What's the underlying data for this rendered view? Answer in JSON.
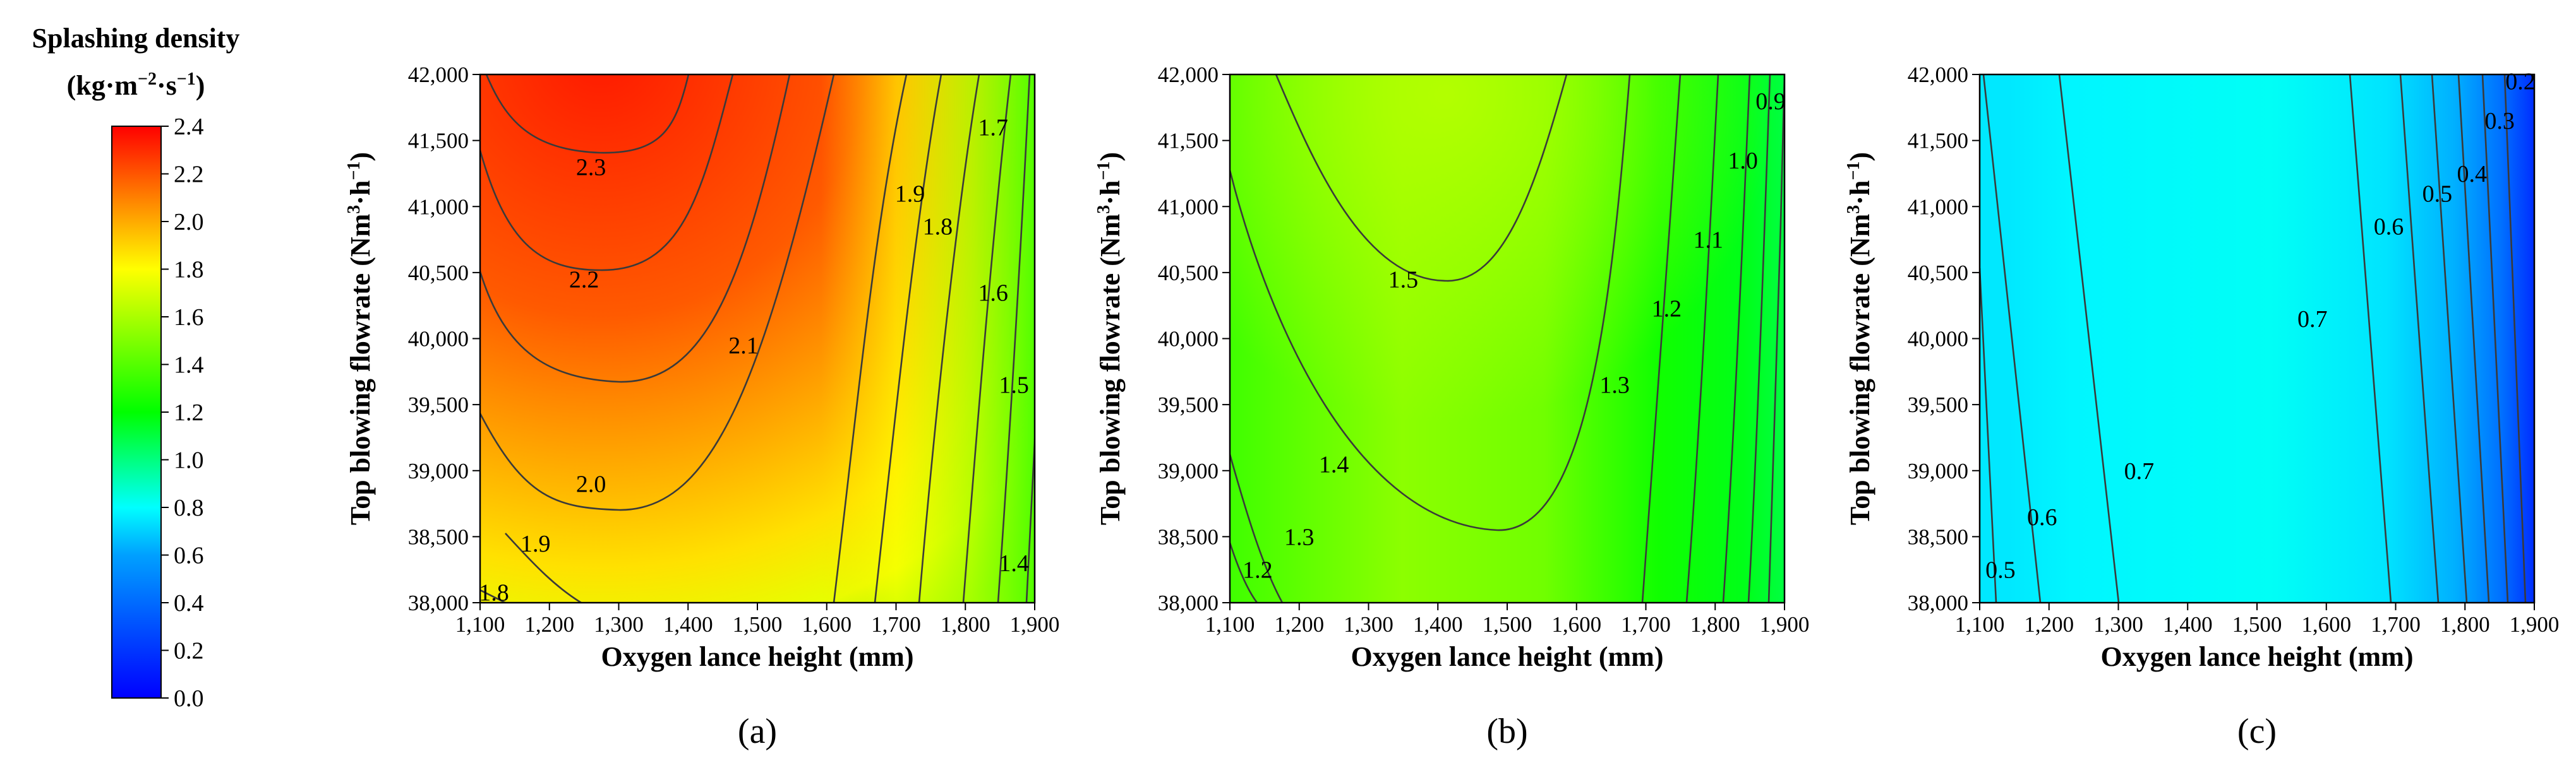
{
  "colorbar": {
    "title_line1": "Splashing density",
    "title_line2_parts": [
      "(kg·m",
      "−2",
      "·s",
      "−1",
      ")"
    ],
    "ticks": [
      "2.4",
      "2.2",
      "2.0",
      "1.8",
      "1.6",
      "1.4",
      "1.2",
      "1.0",
      "0.8",
      "0.6",
      "0.4",
      "0.2",
      "0.0"
    ],
    "range": [
      0,
      2.4
    ],
    "colors": [
      "#0000ff",
      "#00a0ff",
      "#00ffff",
      "#00ff00",
      "#ffff00",
      "#ff8000",
      "#ff0000"
    ]
  },
  "axes": {
    "xlabel": "Oxygen lance height (mm)",
    "ylabel_parts": [
      "Top blowing flowrate (Nm",
      "3",
      "·h",
      "−1",
      ")"
    ],
    "x_ticks": [
      "1,100",
      "1,200",
      "1,300",
      "1,400",
      "1,500",
      "1,600",
      "1,700",
      "1,800",
      "1,900"
    ],
    "y_ticks": [
      "42,000",
      "41,500",
      "41,000",
      "40,500",
      "40,000",
      "39,500",
      "39,000",
      "38,500",
      "38,000"
    ],
    "xlim": [
      1100,
      1900
    ],
    "ylim": [
      38000,
      42000
    ]
  },
  "chart_data": [
    {
      "type": "heatmap",
      "panel_label": "(a)",
      "title": "",
      "xlabel": "Oxygen lance height (mm)",
      "ylabel": "Top blowing flowrate (Nm3·h−1)",
      "xlim": [
        1100,
        1900
      ],
      "ylim": [
        38000,
        42000
      ],
      "contour_labels": [
        {
          "text": "2.3",
          "x": 1260,
          "y": 41300
        },
        {
          "text": "2.2",
          "x": 1250,
          "y": 40450
        },
        {
          "text": "2.1",
          "x": 1480,
          "y": 39950
        },
        {
          "text": "2.0",
          "x": 1260,
          "y": 38900
        },
        {
          "text": "1.9",
          "x": 1180,
          "y": 38450
        },
        {
          "text": "1.8",
          "x": 1120,
          "y": 38080
        },
        {
          "text": "1.9",
          "x": 1720,
          "y": 41100
        },
        {
          "text": "1.8",
          "x": 1760,
          "y": 40850
        },
        {
          "text": "1.7",
          "x": 1840,
          "y": 41600
        },
        {
          "text": "1.6",
          "x": 1840,
          "y": 40350
        },
        {
          "text": "1.5",
          "x": 1870,
          "y": 39650
        },
        {
          "text": "1.4",
          "x": 1870,
          "y": 38300
        }
      ]
    },
    {
      "type": "heatmap",
      "panel_label": "(b)",
      "title": "",
      "xlabel": "Oxygen lance height (mm)",
      "ylabel": "Top blowing flowrate (Nm3·h−1)",
      "xlim": [
        1100,
        1900
      ],
      "ylim": [
        38000,
        42000
      ],
      "contour_labels": [
        {
          "text": "1.5",
          "x": 1350,
          "y": 40450
        },
        {
          "text": "1.4",
          "x": 1250,
          "y": 39050
        },
        {
          "text": "1.3",
          "x": 1200,
          "y": 38500
        },
        {
          "text": "1.2",
          "x": 1140,
          "y": 38250
        },
        {
          "text": "1.3",
          "x": 1655,
          "y": 39650
        },
        {
          "text": "1.2",
          "x": 1730,
          "y": 40230
        },
        {
          "text": "1.1",
          "x": 1790,
          "y": 40750
        },
        {
          "text": "1.0",
          "x": 1840,
          "y": 41350
        },
        {
          "text": "0.9",
          "x": 1880,
          "y": 41800
        }
      ]
    },
    {
      "type": "heatmap",
      "panel_label": "(c)",
      "title": "",
      "xlabel": "Oxygen lance height (mm)",
      "ylabel": "Top blowing flowrate (Nm3·h−1)",
      "xlim": [
        1100,
        1900
      ],
      "ylim": [
        38000,
        42000
      ],
      "contour_labels": [
        {
          "text": "0.5",
          "x": 1130,
          "y": 38250
        },
        {
          "text": "0.6",
          "x": 1190,
          "y": 38650
        },
        {
          "text": "0.7",
          "x": 1330,
          "y": 39000
        },
        {
          "text": "0.7",
          "x": 1580,
          "y": 40150
        },
        {
          "text": "0.6",
          "x": 1690,
          "y": 40850
        },
        {
          "text": "0.5",
          "x": 1760,
          "y": 41100
        },
        {
          "text": "0.4",
          "x": 1810,
          "y": 41250
        },
        {
          "text": "0.3",
          "x": 1850,
          "y": 41650
        },
        {
          "text": "0.2",
          "x": 1880,
          "y": 41950
        }
      ]
    }
  ]
}
